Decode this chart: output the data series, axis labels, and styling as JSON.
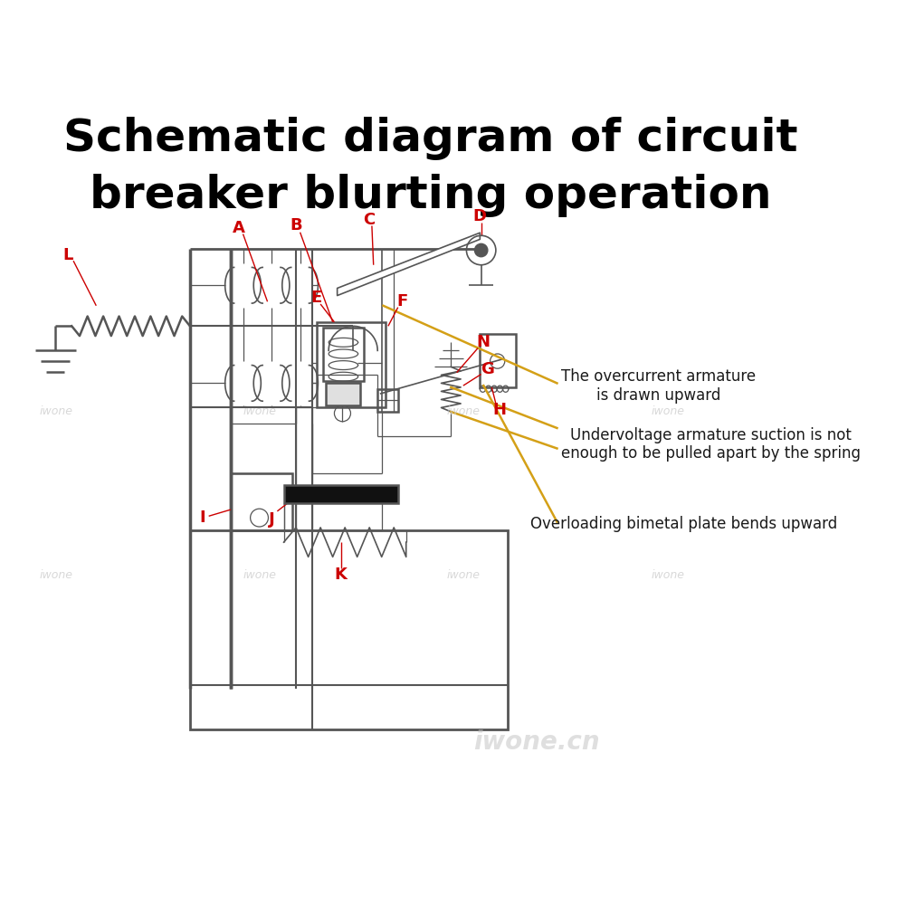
{
  "title_line1": "Schematic diagram of circuit",
  "title_line2": "breaker blurting operation",
  "title_fontsize": 36,
  "title_color": "#000000",
  "bg_color": "#ffffff",
  "line_color": "#555555",
  "label_color": "#cc0000",
  "annotation_color": "#1a1a1a",
  "yellow_line_color": "#d4a017",
  "watermark_text": "iwone",
  "watermark_color": "#c8c8c8",
  "watermark2_text": "iwone.cn",
  "watermark2_color": "#cccccc"
}
